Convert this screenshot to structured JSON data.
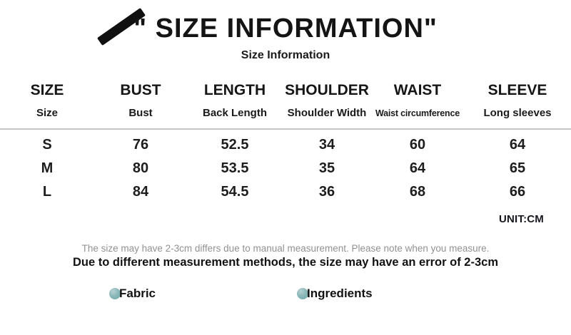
{
  "header": {
    "title": "\" SIZE INFORMATION\"",
    "subtitle": "Size Information"
  },
  "table": {
    "unit_label": "UNIT:CM",
    "columns": [
      {
        "name": "SIZE",
        "description": "Size"
      },
      {
        "name": "BUST",
        "description": "Bust"
      },
      {
        "name": "LENGTH",
        "description": "Back Length"
      },
      {
        "name": "SHOULDER",
        "description": "Shoulder Width"
      },
      {
        "name": "WAIST",
        "description": "Waist circumference"
      },
      {
        "name": "SLEEVE",
        "description": "Long sleeves"
      }
    ],
    "rows": [
      {
        "size": "S",
        "values": [
          "76",
          "52.5",
          "34",
          "60",
          "64"
        ]
      },
      {
        "size": "M",
        "values": [
          "80",
          "53.5",
          "35",
          "64",
          "65"
        ]
      },
      {
        "size": "L",
        "values": [
          "84",
          "54.5",
          "36",
          "68",
          "66"
        ]
      }
    ]
  },
  "notice": {
    "line1": "The size may have 2-3cm differs due to manual measurement. Please note when you measure.",
    "line2": "Due to different measurement methods, the size may have an error of 2-3cm"
  },
  "legend": {
    "bullet_color": "#7fb1b3",
    "items": [
      {
        "label": "Fabric"
      },
      {
        "label": "Ingredients"
      }
    ]
  }
}
